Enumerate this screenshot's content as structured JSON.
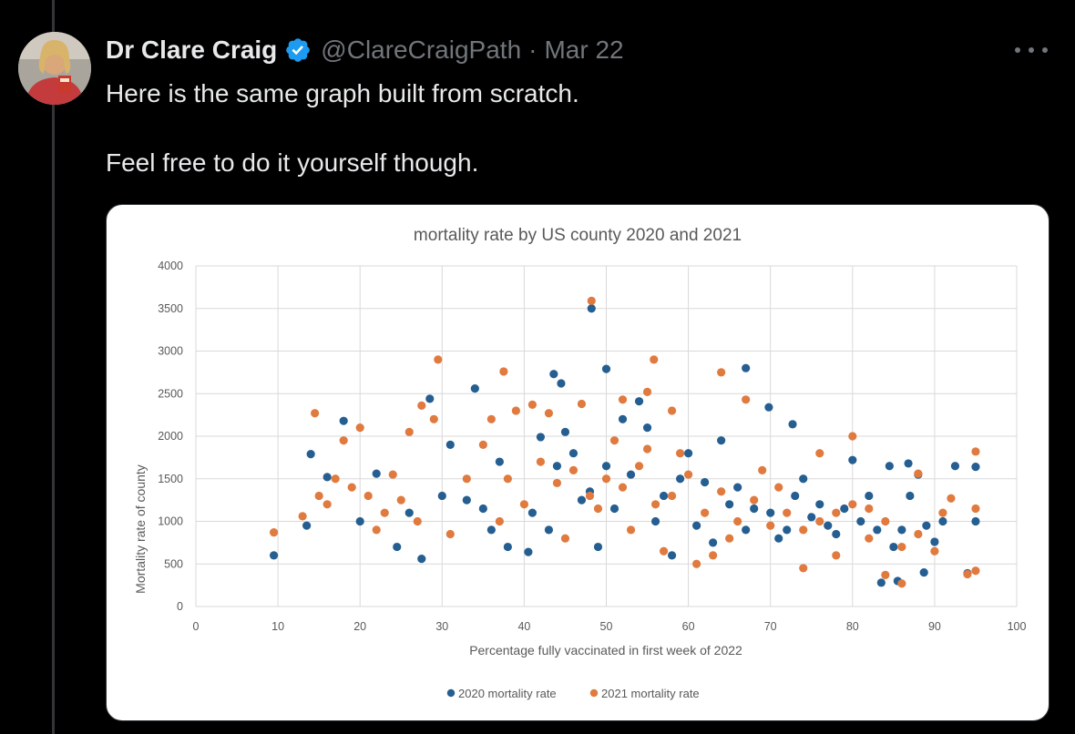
{
  "tweet": {
    "author_name": "Dr Clare Craig",
    "handle": "@ClareCraigPath",
    "separator": "·",
    "date": "Mar 22",
    "text_line1": "Here is the same graph built from scratch.",
    "text_line2": "Feel free to do it yourself though.",
    "verified_icon": "verified-badge-icon",
    "more_icon": "more-dots-icon",
    "verified_color": "#1d9bf0"
  },
  "chart_data": {
    "type": "scatter",
    "title": "mortality rate by US county 2020 and 2021",
    "xlabel": "Percentage  fully vaccinated  in first week of 2022",
    "ylabel": "Mortality rate of county",
    "xlim": [
      0,
      100
    ],
    "ylim": [
      0,
      4000
    ],
    "x_ticks": [
      0,
      10,
      20,
      30,
      40,
      50,
      60,
      70,
      80,
      90,
      100
    ],
    "y_ticks": [
      0,
      500,
      1000,
      1500,
      2000,
      2500,
      3000,
      3500,
      4000
    ],
    "grid": true,
    "legend_position": "bottom",
    "series": [
      {
        "name": "2020 mortality rate",
        "color": "#255e91",
        "points": [
          [
            9.5,
            600
          ],
          [
            48.2,
            3500
          ],
          [
            50,
            2790
          ],
          [
            67,
            2800
          ],
          [
            43.6,
            2730
          ],
          [
            44.5,
            2620
          ],
          [
            34,
            2560
          ],
          [
            28.5,
            2440
          ],
          [
            69.8,
            2340
          ],
          [
            72.7,
            2140
          ],
          [
            18,
            2180
          ],
          [
            80,
            1720
          ],
          [
            84.5,
            1650
          ],
          [
            86.8,
            1680
          ],
          [
            92.5,
            1650
          ],
          [
            95,
            1640
          ],
          [
            94,
            390
          ],
          [
            95,
            1000
          ],
          [
            83.5,
            280
          ],
          [
            85.5,
            300
          ],
          [
            88.7,
            400
          ],
          [
            90,
            760
          ],
          [
            14,
            1790
          ],
          [
            16,
            1520
          ],
          [
            13.5,
            950
          ],
          [
            20,
            1000
          ],
          [
            22,
            1560
          ],
          [
            24.5,
            700
          ],
          [
            27.5,
            560
          ],
          [
            26,
            1100
          ],
          [
            31,
            1900
          ],
          [
            33,
            1250
          ],
          [
            36,
            900
          ],
          [
            38,
            700
          ],
          [
            40.5,
            640
          ],
          [
            42,
            1990
          ],
          [
            45,
            2050
          ],
          [
            47,
            1250
          ],
          [
            49,
            700
          ],
          [
            50,
            1650
          ],
          [
            52,
            2200
          ],
          [
            54,
            2410
          ],
          [
            56,
            1000
          ],
          [
            58,
            600
          ],
          [
            60,
            1800
          ],
          [
            62,
            1460
          ],
          [
            64,
            1950
          ],
          [
            66,
            1400
          ],
          [
            68,
            1150
          ],
          [
            70,
            1100
          ],
          [
            72,
            900
          ],
          [
            74,
            1500
          ],
          [
            76,
            1200
          ],
          [
            78,
            850
          ],
          [
            82,
            1300
          ],
          [
            86,
            900
          ],
          [
            88,
            1550
          ],
          [
            91,
            1000
          ],
          [
            55,
            2100
          ],
          [
            46,
            1800
          ],
          [
            41,
            1100
          ],
          [
            37,
            1700
          ],
          [
            35,
            1150
          ],
          [
            30,
            1300
          ],
          [
            57,
            1300
          ],
          [
            59,
            1500
          ],
          [
            61,
            950
          ],
          [
            63,
            750
          ],
          [
            65,
            1200
          ],
          [
            67,
            900
          ],
          [
            71,
            800
          ],
          [
            73,
            1300
          ],
          [
            75,
            1050
          ],
          [
            77,
            950
          ],
          [
            79,
            1150
          ],
          [
            81,
            1000
          ],
          [
            83,
            900
          ],
          [
            85,
            700
          ],
          [
            87,
            1300
          ],
          [
            89,
            950
          ],
          [
            53,
            1550
          ],
          [
            51,
            1150
          ],
          [
            48,
            1350
          ],
          [
            44,
            1650
          ],
          [
            43,
            900
          ]
        ]
      },
      {
        "name": "2021 mortality rate",
        "color": "#e07a3f",
        "points": [
          [
            9.5,
            870
          ],
          [
            48.2,
            3590
          ],
          [
            55.8,
            2900
          ],
          [
            29.5,
            2900
          ],
          [
            37.5,
            2760
          ],
          [
            64,
            2750
          ],
          [
            55,
            2520
          ],
          [
            67,
            2430
          ],
          [
            14.5,
            2270
          ],
          [
            27.5,
            2360
          ],
          [
            80,
            2000
          ],
          [
            95,
            1820
          ],
          [
            94,
            380
          ],
          [
            95,
            420
          ],
          [
            95,
            1150
          ],
          [
            92,
            1270
          ],
          [
            90,
            650
          ],
          [
            88,
            1560
          ],
          [
            86,
            270
          ],
          [
            84,
            370
          ],
          [
            82,
            1150
          ],
          [
            78,
            600
          ],
          [
            76,
            1800
          ],
          [
            74,
            450
          ],
          [
            71,
            1400
          ],
          [
            69,
            1600
          ],
          [
            58,
            2300
          ],
          [
            52,
            2430
          ],
          [
            47,
            2380
          ],
          [
            43,
            2270
          ],
          [
            41,
            2370
          ],
          [
            39,
            2300
          ],
          [
            36,
            2200
          ],
          [
            33,
            1500
          ],
          [
            31,
            850
          ],
          [
            29,
            2200
          ],
          [
            26,
            2050
          ],
          [
            24,
            1550
          ],
          [
            22,
            900
          ],
          [
            20,
            2100
          ],
          [
            18,
            1950
          ],
          [
            16,
            1200
          ],
          [
            13,
            1060
          ],
          [
            15,
            1300
          ],
          [
            17,
            1500
          ],
          [
            19,
            1400
          ],
          [
            21,
            1300
          ],
          [
            23,
            1100
          ],
          [
            25,
            1250
          ],
          [
            27,
            1000
          ],
          [
            35,
            1900
          ],
          [
            38,
            1500
          ],
          [
            40,
            1200
          ],
          [
            42,
            1700
          ],
          [
            44,
            1450
          ],
          [
            46,
            1600
          ],
          [
            48,
            1300
          ],
          [
            50,
            1500
          ],
          [
            52,
            1400
          ],
          [
            54,
            1650
          ],
          [
            56,
            1200
          ],
          [
            58,
            1300
          ],
          [
            60,
            1550
          ],
          [
            62,
            1100
          ],
          [
            64,
            1350
          ],
          [
            66,
            1000
          ],
          [
            68,
            1250
          ],
          [
            70,
            950
          ],
          [
            72,
            1100
          ],
          [
            74,
            900
          ],
          [
            76,
            1000
          ],
          [
            78,
            1100
          ],
          [
            80,
            1200
          ],
          [
            82,
            800
          ],
          [
            84,
            1000
          ],
          [
            86,
            700
          ],
          [
            88,
            850
          ],
          [
            91,
            1100
          ],
          [
            37,
            1000
          ],
          [
            45,
            800
          ],
          [
            53,
            900
          ],
          [
            57,
            650
          ],
          [
            61,
            500
          ],
          [
            63,
            600
          ],
          [
            65,
            800
          ],
          [
            59,
            1800
          ],
          [
            51,
            1950
          ],
          [
            49,
            1150
          ],
          [
            55,
            1850
          ]
        ]
      }
    ]
  }
}
